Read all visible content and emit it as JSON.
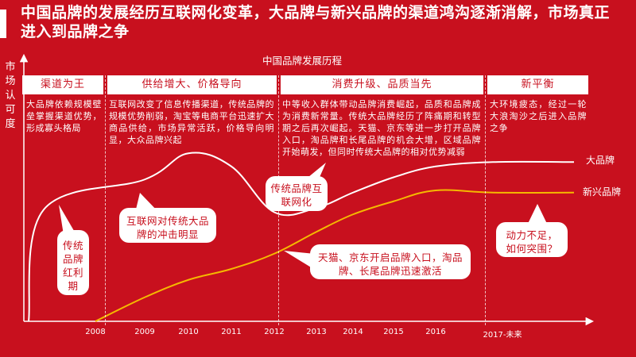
{
  "title": "中国品牌的发展经历互联网化变革，大品牌与新兴品牌的渠道鸿沟逐渐消解，市场真正进入到品牌之争",
  "colors": {
    "background": "#c8101e",
    "big_brand_line": "#ffffff",
    "emerging_brand_line": "#f5b800"
  },
  "chart_data": {
    "type": "line",
    "title": "中国品牌发展历程",
    "ylabel": "市场认可度",
    "xlabel": "",
    "categories": [
      "2008",
      "2009",
      "2010",
      "2011",
      "2012",
      "2013",
      "2014",
      "2015",
      "2016",
      "2017-未来"
    ],
    "ylim": [
      0,
      100
    ],
    "grid": false,
    "series": [
      {
        "name": "大品牌",
        "values": [
          16,
          65,
          77,
          71,
          50,
          52,
          59,
          66,
          71,
          73
        ]
      },
      {
        "name": "新兴品牌",
        "values": [
          4,
          11,
          19,
          24,
          31,
          41,
          49,
          55,
          60,
          59
        ]
      }
    ],
    "phases": [
      {
        "name": "渠道为王",
        "desc": "大品牌依赖规模壁垒掌握渠道优势，形成寡头格局"
      },
      {
        "name": "供给增大、价格导向",
        "desc": "互联网改变了信息传播渠道，传统品牌的规模优势削弱，淘宝等电商平台迅速扩大商品供给，市场异常活跃，价格导向明显，大众品牌兴起"
      },
      {
        "name": "消费升级、品质当先",
        "desc": "中等收入群体带动品牌消费崛起，品质和品牌成为消费新常量。传统大品牌经历了阵痛期和转型期之后再次崛起。天猫、京东等进一步打开品牌入口，淘品牌和长尾品牌的机会大增，区域品牌开始萌发，但同时传统大品牌的相对优势减弱"
      },
      {
        "name": "新平衡",
        "desc": "大环境疲态，经过一轮大浪淘沙之后进入品牌之争"
      }
    ],
    "annotations": [
      {
        "id": "dividend",
        "text": "传统品牌红利期"
      },
      {
        "id": "internet-impact",
        "text": "互联网对传统大品牌的冲击明显"
      },
      {
        "id": "traditional-internet",
        "text": "传统品牌互联网化"
      },
      {
        "id": "tmall-jd",
        "text": "天猫、京东开启品牌入口，淘品牌、长尾品牌迅速激活"
      },
      {
        "id": "momentum",
        "text": "动力不足，如何突围？"
      }
    ]
  }
}
